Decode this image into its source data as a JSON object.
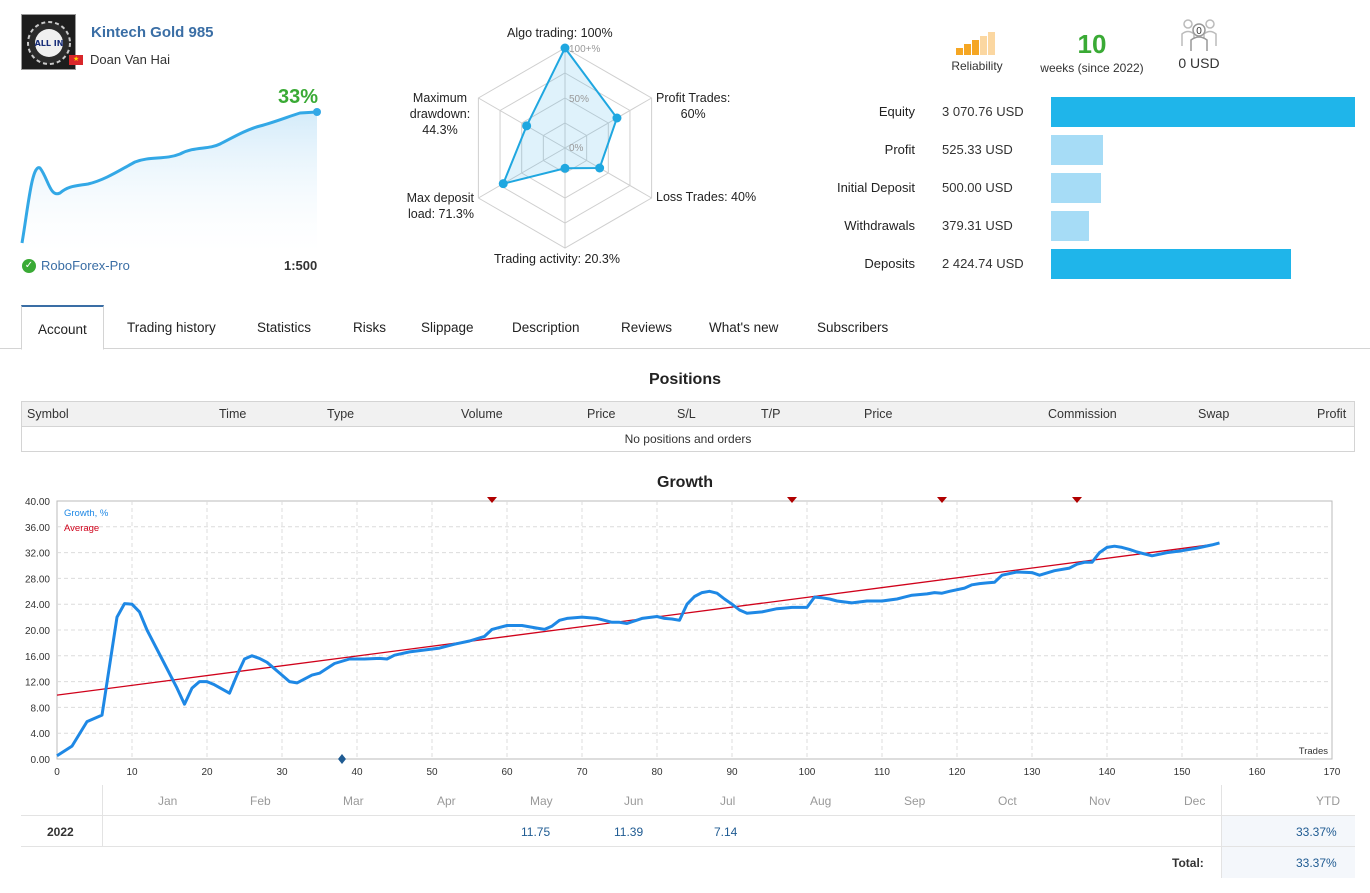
{
  "signal": {
    "title": "Kintech Gold 985",
    "author": "Doan Van Hai",
    "avatar_text": "ALL IN",
    "growth": "33%",
    "broker": "RoboForex-Pro",
    "leverage": "1:500"
  },
  "radar": {
    "algo": "Algo trading: 100%",
    "scale_100": "100+%",
    "scale_50": "50%",
    "scale_0": "0%",
    "profit_trades_1": "Profit Trades:",
    "profit_trades_2": "60%",
    "loss_trades": "Loss Trades: 40%",
    "activity": "Trading activity: 20.3%",
    "deposit_load_1": "Max deposit",
    "deposit_load_2": "load: 71.3%",
    "drawdown_1": "Maximum",
    "drawdown_2": "drawdown:",
    "drawdown_3": "44.3%",
    "values": {
      "algo": 100,
      "profit_trades": 60,
      "loss_trades": 40,
      "activity": 20.3,
      "deposit_load": 71.3,
      "drawdown": 44.3
    }
  },
  "kpis": {
    "reliability_label": "Reliability",
    "weeks_value": "10",
    "weeks_label": "weeks (since 2022)",
    "subscribers_count": "0",
    "subscribers_funds": "0 USD",
    "colors": {
      "accent_orange": "#f5a623",
      "pale_orange": "#fbd7a1",
      "green": "#3aaa35"
    }
  },
  "balance_bars": [
    {
      "label": "Equity",
      "value": "3 070.76 USD",
      "fraction": 1.0,
      "color": "#1fb5ea"
    },
    {
      "label": "Profit",
      "value": "525.33 USD",
      "fraction": 0.171,
      "color": "#a6dcf6"
    },
    {
      "label": "Initial Deposit",
      "value": "500.00 USD",
      "fraction": 0.163,
      "color": "#a6dcf6"
    },
    {
      "label": "Withdrawals",
      "value": "379.31 USD",
      "fraction": 0.124,
      "color": "#a6dcf6"
    },
    {
      "label": "Deposits",
      "value": "2 424.74 USD",
      "fraction": 0.79,
      "color": "#1fb5ea"
    }
  ],
  "tabs": [
    "Account",
    "Trading history",
    "Statistics",
    "Risks",
    "Slippage",
    "Description",
    "Reviews",
    "What's new",
    "Subscribers"
  ],
  "positions": {
    "title": "Positions",
    "columns": [
      "Symbol",
      "Time",
      "Type",
      "Volume",
      "Price",
      "S/L",
      "T/P",
      "Price",
      "Commission",
      "Swap",
      "Profit"
    ],
    "empty_text": "No positions and orders"
  },
  "growth_section_title": "Growth",
  "chart_data": {
    "type": "line",
    "title": "Growth",
    "legend": [
      "Growth, %",
      "Average"
    ],
    "legend_position": "top-left",
    "xlabel": "Trades",
    "xlim": [
      0,
      170
    ],
    "ylim": [
      0,
      40
    ],
    "x_ticks": [
      0,
      10,
      20,
      30,
      40,
      50,
      60,
      70,
      80,
      90,
      100,
      110,
      120,
      130,
      140,
      150,
      160,
      170
    ],
    "y_ticks": [
      "0.00",
      "4.00",
      "8.00",
      "12.00",
      "16.00",
      "20.00",
      "24.00",
      "28.00",
      "32.00",
      "36.00",
      "40.00"
    ],
    "grid": true,
    "series": [
      {
        "name": "Growth, %",
        "color": "#1e88e5",
        "x": [
          0,
          2,
          4,
          6,
          8,
          9,
          10,
          11,
          12,
          14,
          16,
          17,
          18,
          19,
          20,
          21,
          23,
          24,
          25,
          26,
          27,
          28,
          30,
          31,
          32,
          34,
          35,
          37,
          39,
          41,
          43,
          44,
          45,
          47,
          49,
          51,
          53,
          55,
          57,
          58,
          59,
          60,
          62,
          64,
          65,
          66,
          67,
          68,
          70,
          72,
          74,
          75,
          76,
          78,
          80,
          81,
          82,
          83,
          84,
          85,
          86,
          87,
          88,
          89,
          90,
          91,
          92,
          94,
          96,
          97,
          98,
          100,
          101,
          102,
          103,
          104,
          106,
          108,
          109,
          110,
          112,
          113,
          114,
          116,
          117,
          118,
          119,
          121,
          122,
          123,
          124,
          125,
          126,
          128,
          130,
          131,
          133,
          135,
          136,
          137,
          138,
          139,
          140,
          141,
          142,
          143,
          144,
          146,
          148,
          150,
          152,
          154,
          155
        ],
        "y": [
          0.5,
          2,
          5.8,
          6.8,
          22,
          24.1,
          24,
          22.8,
          20,
          15.5,
          11,
          8.5,
          11,
          12,
          12,
          11.5,
          10.2,
          13,
          15.5,
          16,
          15.6,
          15,
          13,
          12,
          11.8,
          13,
          13.3,
          14.8,
          15.5,
          15.5,
          15.6,
          15.5,
          16.1,
          16.6,
          16.9,
          17.2,
          17.8,
          18.3,
          19,
          20.1,
          20.4,
          20.7,
          20.7,
          20.3,
          20.1,
          20.6,
          21.5,
          21.8,
          22,
          21.8,
          21.2,
          21.2,
          21,
          21.8,
          22.1,
          21.8,
          21.7,
          21.5,
          24,
          25.2,
          25.8,
          26,
          25.7,
          24.8,
          24,
          23.1,
          22.6,
          22.8,
          23.3,
          23.4,
          23.5,
          23.5,
          25.1,
          25,
          24.8,
          24.5,
          24.2,
          24.5,
          24.5,
          24.5,
          24.8,
          25.1,
          25.4,
          25.6,
          25.8,
          25.7,
          26,
          26.5,
          27,
          27.2,
          27.3,
          27.4,
          28.5,
          29,
          28.9,
          28.5,
          29.2,
          29.6,
          30.2,
          30.5,
          30.5,
          32,
          32.8,
          33,
          32.8,
          32.5,
          32.1,
          31.5,
          32,
          32.3,
          32.7,
          33.2,
          33.5
        ],
        "markers": [
          {
            "x": 38,
            "y": 0
          }
        ]
      },
      {
        "name": "Average",
        "color": "#d0021b",
        "x": [
          0,
          155
        ],
        "y": [
          9.9,
          33.4
        ]
      }
    ],
    "top_markers_x": [
      58,
      98,
      118,
      136
    ]
  },
  "monthly": {
    "months": [
      "Jan",
      "Feb",
      "Mar",
      "Apr",
      "May",
      "Jun",
      "Jul",
      "Aug",
      "Sep",
      "Oct",
      "Nov",
      "Dec"
    ],
    "ytd_label": "YTD",
    "year": "2022",
    "values": [
      "",
      "",
      "",
      "",
      "11.75",
      "11.39",
      "7.14",
      "",
      "",
      "",
      "",
      ""
    ],
    "ytd": "33.37%",
    "total_label": "Total:",
    "total": "33.37%"
  }
}
